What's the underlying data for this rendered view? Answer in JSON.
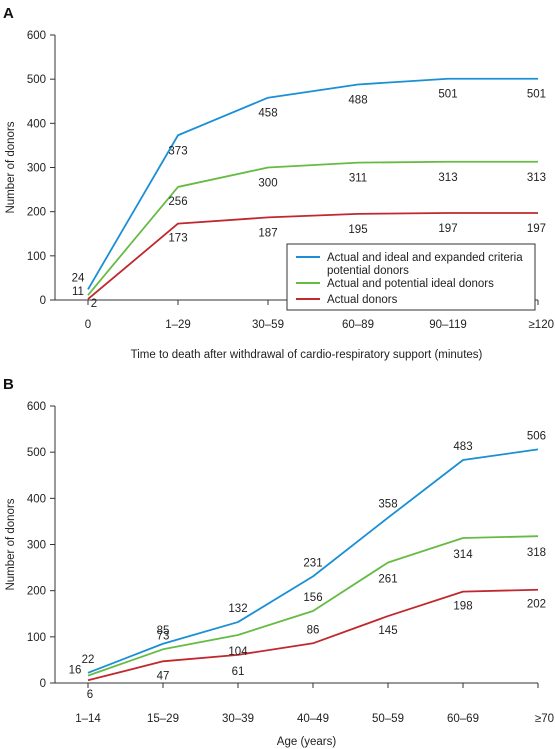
{
  "chart_data": [
    {
      "panel_label": "A",
      "type": "line",
      "categories": [
        "0",
        "1–29",
        "30–59",
        "60–89",
        "90–119",
        "≥120"
      ],
      "xlabel": "Time to death after withdrawal of cardio-respiratory support (minutes)",
      "ylabel": "Number of donors",
      "ylim": [
        0,
        600
      ],
      "yticks": [
        "0",
        "100",
        "200",
        "300",
        "400",
        "500",
        "600"
      ],
      "legend": "bottom-right",
      "series": [
        {
          "name": "Actual and ideal and expanded criteria potential donors",
          "color": "#1a8fd6",
          "values": [
            24,
            373,
            458,
            488,
            501,
            501
          ],
          "labels": [
            "24",
            "373",
            "458",
            "488",
            "501",
            "501"
          ]
        },
        {
          "name": "Actual and potential ideal donors",
          "color": "#66bb44",
          "values": [
            11,
            256,
            300,
            311,
            313,
            313
          ],
          "labels": [
            "11",
            "256",
            "300",
            "311",
            "313",
            "313"
          ]
        },
        {
          "name": "Actual donors",
          "color": "#c0282e",
          "values": [
            2,
            173,
            187,
            195,
            197,
            197
          ],
          "labels": [
            "2",
            "173",
            "187",
            "195",
            "197",
            "197"
          ]
        }
      ]
    },
    {
      "panel_label": "B",
      "type": "line",
      "categories": [
        "1–14",
        "15–29",
        "30–39",
        "40–49",
        "50–59",
        "60–69",
        "≥70"
      ],
      "xlabel": "Age (years)",
      "ylabel": "Number of donors",
      "ylim": [
        0,
        600
      ],
      "yticks": [
        "0",
        "100",
        "200",
        "300",
        "400",
        "500",
        "600"
      ],
      "series": [
        {
          "color": "#1a8fd6",
          "values": [
            22,
            85,
            132,
            231,
            358,
            483,
            506
          ],
          "labels": [
            "22",
            "85",
            "132",
            "231",
            "358",
            "483",
            "506"
          ]
        },
        {
          "color": "#66bb44",
          "values": [
            16,
            73,
            104,
            156,
            261,
            314,
            318
          ],
          "labels": [
            "16",
            "73",
            "104",
            "156",
            "261",
            "314",
            "318"
          ]
        },
        {
          "color": "#c0282e",
          "values": [
            6,
            47,
            61,
            86,
            145,
            198,
            202
          ],
          "labels": [
            "6",
            "47",
            "61",
            "86",
            "145",
            "198",
            "202"
          ]
        }
      ]
    }
  ]
}
